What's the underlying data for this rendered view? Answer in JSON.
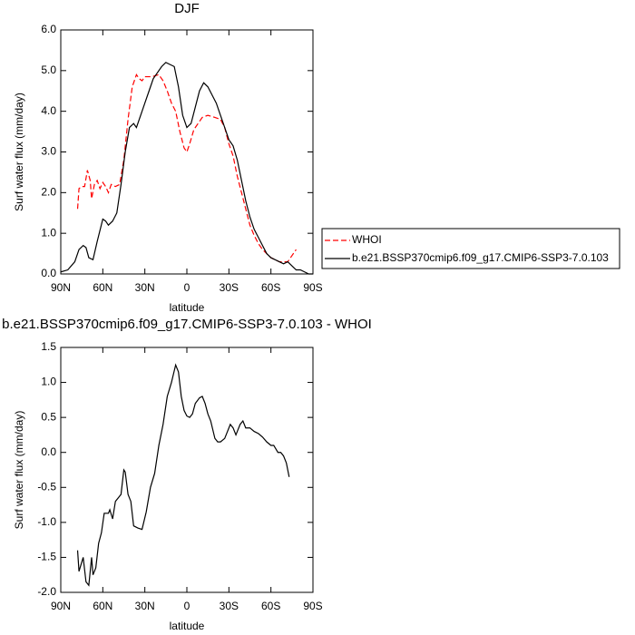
{
  "chart_data": [
    {
      "type": "line",
      "title": "DJF",
      "x_label": "latitude",
      "y_label": "Surf water flux (mm/day)",
      "xlim": [
        90,
        -90
      ],
      "xticks": [
        {
          "value": 90,
          "label": "90N"
        },
        {
          "value": 60,
          "label": "60N"
        },
        {
          "value": 30,
          "label": "30N"
        },
        0,
        {
          "value": -30,
          "label": "30S"
        },
        {
          "value": -60,
          "label": "60S"
        },
        {
          "value": -90,
          "label": "90S"
        }
      ],
      "ylim": [
        0,
        6
      ],
      "yticks": [
        {
          "value": 0,
          "label": "0.0"
        },
        {
          "value": 1,
          "label": "1.0"
        },
        {
          "value": 2,
          "label": "2.0"
        },
        {
          "value": 3,
          "label": "3.0"
        },
        {
          "value": 4,
          "label": "4.0"
        },
        {
          "value": 5,
          "label": "5.0"
        },
        {
          "value": 6,
          "label": "6.0"
        }
      ],
      "legend": "right",
      "series": [
        {
          "name": "WHOI",
          "color": "#ff0000",
          "line_style": "dashed",
          "x": [
            78,
            77,
            75,
            73,
            71,
            69,
            68,
            66,
            64,
            62,
            60,
            58,
            56,
            54,
            51,
            48,
            45,
            42,
            39,
            36,
            34,
            32,
            30,
            25,
            20,
            17,
            14,
            11,
            8,
            5,
            2,
            0,
            -2,
            -5,
            -8,
            -11,
            -15,
            -20,
            -24,
            -27,
            -30,
            -33,
            -36,
            -39,
            -42,
            -45,
            -48,
            -51,
            -54,
            -57,
            -60,
            -63,
            -66,
            -69,
            -72,
            -75,
            -78
          ],
          "values": [
            1.6,
            2.1,
            2.15,
            2.15,
            2.55,
            2.3,
            1.85,
            2.2,
            2.3,
            2.1,
            2.25,
            2.15,
            2.0,
            2.2,
            2.15,
            2.2,
            2.8,
            3.8,
            4.6,
            4.9,
            4.8,
            4.75,
            4.85,
            4.85,
            4.9,
            4.75,
            4.5,
            4.2,
            4.0,
            3.5,
            3.1,
            3.0,
            3.2,
            3.55,
            3.7,
            3.85,
            3.9,
            3.85,
            3.8,
            3.6,
            3.2,
            2.9,
            2.4,
            2.0,
            1.6,
            1.2,
            0.95,
            0.75,
            0.6,
            0.5,
            0.4,
            0.35,
            0.3,
            0.3,
            0.3,
            0.45,
            0.6
          ]
        },
        {
          "name": "b.e21.BSSP370cmip6.f09_g17.CMIP6-SSP3-7.0.103",
          "color": "#000000",
          "line_style": "solid",
          "x": [
            90,
            85,
            80,
            77,
            74,
            72,
            70,
            67,
            64,
            60,
            58,
            56,
            53,
            50,
            47,
            44,
            41,
            38,
            36,
            33,
            30,
            27,
            24,
            21,
            18,
            15,
            12,
            9,
            6,
            3,
            0,
            -3,
            -6,
            -9,
            -12,
            -15,
            -18,
            -21,
            -24,
            -27,
            -30,
            -33,
            -36,
            -39,
            -42,
            -45,
            -48,
            -51,
            -54,
            -57,
            -60,
            -63,
            -66,
            -69,
            -72,
            -75,
            -78,
            -81,
            -84,
            -87,
            -90
          ],
          "values": [
            0.05,
            0.1,
            0.3,
            0.6,
            0.7,
            0.65,
            0.4,
            0.35,
            0.8,
            1.35,
            1.3,
            1.2,
            1.3,
            1.5,
            2.2,
            3.0,
            3.6,
            3.7,
            3.6,
            3.9,
            4.2,
            4.5,
            4.8,
            4.95,
            5.1,
            5.2,
            5.15,
            5.1,
            4.6,
            3.9,
            3.6,
            3.7,
            4.1,
            4.5,
            4.7,
            4.6,
            4.4,
            4.2,
            3.9,
            3.6,
            3.3,
            3.15,
            2.8,
            2.3,
            1.8,
            1.4,
            1.1,
            0.9,
            0.7,
            0.5,
            0.4,
            0.35,
            0.3,
            0.25,
            0.3,
            0.2,
            0.1,
            0.1,
            0.05,
            0.0,
            0.0
          ]
        }
      ]
    },
    {
      "type": "line",
      "title": "b.e21.BSSP370cmip6.f09_g17.CMIP6-SSP3-7.0.103 - WHOI",
      "x_label": "latitude",
      "y_label": "Surf water flux (mm/day)",
      "xlim": [
        90,
        -90
      ],
      "xticks": [
        {
          "value": 90,
          "label": "90N"
        },
        {
          "value": 60,
          "label": "60N"
        },
        {
          "value": 30,
          "label": "30N"
        },
        0,
        {
          "value": -30,
          "label": "30S"
        },
        {
          "value": -60,
          "label": "60S"
        },
        {
          "value": -90,
          "label": "90S"
        }
      ],
      "ylim": [
        -2,
        1.5
      ],
      "yticks": [
        {
          "value": -2,
          "label": "-2.0"
        },
        -1.5,
        {
          "value": -1,
          "label": "-1.0"
        },
        -0.5,
        {
          "value": 0,
          "label": "0.0"
        },
        0.5,
        {
          "value": 1,
          "label": "1.0"
        },
        1.5
      ],
      "series": [
        {
          "color": "#000000",
          "line_style": "solid",
          "x": [
            78,
            77,
            74,
            72,
            70,
            68,
            67,
            65,
            63,
            61,
            59,
            56,
            55,
            53,
            51,
            49,
            47,
            45,
            44,
            42,
            40,
            38,
            35,
            32,
            29,
            26,
            23,
            20,
            17,
            14,
            11,
            8,
            6,
            4,
            2,
            0,
            -2,
            -4,
            -6,
            -9,
            -11,
            -13,
            -15,
            -17,
            -20,
            -22,
            -24,
            -27,
            -29,
            -31,
            -33,
            -35,
            -36,
            -38,
            -40,
            -42,
            -45,
            -48,
            -51,
            -54,
            -57,
            -60,
            -62,
            -65,
            -67,
            -69,
            -71,
            -73
          ],
          "values": [
            -1.4,
            -1.7,
            -1.5,
            -1.85,
            -1.9,
            -1.5,
            -1.75,
            -1.65,
            -1.3,
            -1.15,
            -0.87,
            -0.87,
            -0.82,
            -0.95,
            -0.7,
            -0.65,
            -0.6,
            -0.25,
            -0.28,
            -0.6,
            -0.7,
            -1.05,
            -1.08,
            -1.1,
            -0.85,
            -0.5,
            -0.3,
            0.1,
            0.4,
            0.8,
            1.0,
            1.25,
            1.15,
            0.8,
            0.6,
            0.52,
            0.5,
            0.55,
            0.7,
            0.78,
            0.8,
            0.7,
            0.55,
            0.45,
            0.2,
            0.15,
            0.15,
            0.2,
            0.3,
            0.4,
            0.35,
            0.25,
            0.3,
            0.4,
            0.45,
            0.35,
            0.35,
            0.3,
            0.27,
            0.22,
            0.15,
            0.1,
            0.1,
            0.0,
            0.0,
            -0.05,
            -0.15,
            -0.35
          ]
        }
      ]
    }
  ]
}
